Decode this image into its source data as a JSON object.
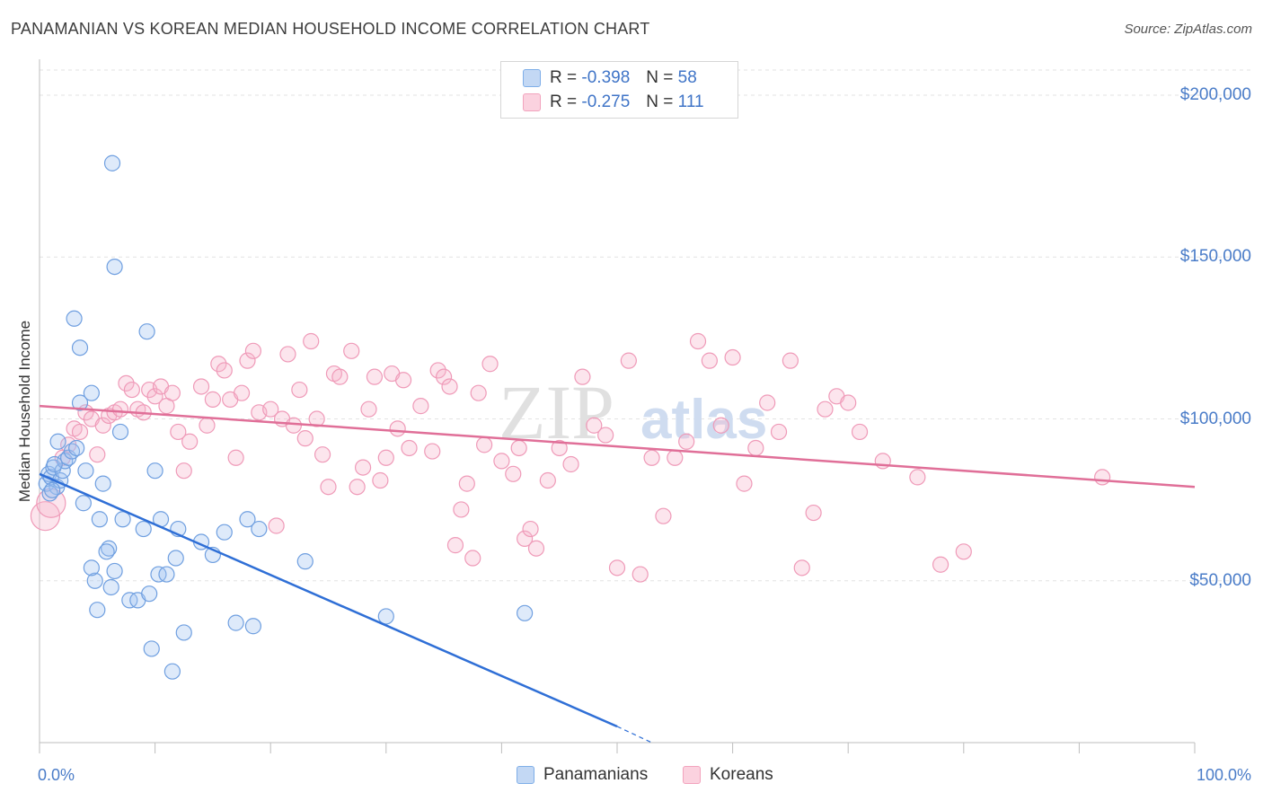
{
  "title": "PANAMANIAN VS KOREAN MEDIAN HOUSEHOLD INCOME CORRELATION CHART",
  "source": "Source: ZipAtlas.com",
  "watermark": {
    "zip": "ZIP",
    "atlas": "atlas"
  },
  "legend": {
    "r_label": "R =",
    "n_label": "N =",
    "rows": [
      {
        "name": "Panamanians",
        "r": "-0.398",
        "n": "58",
        "color": "#7eaee8"
      },
      {
        "name": "Koreans",
        "r": "-0.275",
        "n": "111",
        "color": "#f2a3bd"
      }
    ]
  },
  "chart_data": {
    "type": "scatter",
    "title": "PANAMANIAN VS KOREAN MEDIAN HOUSEHOLD INCOME CORRELATION CHART",
    "xlabel": "",
    "ylabel": "Median Household Income",
    "xlim": [
      0,
      100
    ],
    "ylim": [
      0,
      210000
    ],
    "x_tick_labels": [
      "0.0%",
      "100.0%"
    ],
    "y_ticks": [
      50000,
      100000,
      150000,
      200000
    ],
    "y_tick_labels": [
      "$50,000",
      "$100,000",
      "$150,000",
      "$200,000"
    ],
    "grid": true,
    "series": [
      {
        "name": "Panamanians",
        "color": "#5b8fdc",
        "trend": {
          "x": [
            0,
            50
          ],
          "y": [
            83000,
            5000
          ],
          "dashed_to": [
            53,
            0
          ]
        },
        "points": [
          [
            0.6,
            80000
          ],
          [
            0.8,
            83000
          ],
          [
            1.0,
            82000
          ],
          [
            1.2,
            85000
          ],
          [
            1.5,
            79000
          ],
          [
            1.8,
            81000
          ],
          [
            2.0,
            84000
          ],
          [
            2.2,
            87000
          ],
          [
            2.5,
            88000
          ],
          [
            0.9,
            77000
          ],
          [
            1.3,
            86000
          ],
          [
            1.6,
            93000
          ],
          [
            2.8,
            90000
          ],
          [
            3.2,
            91000
          ],
          [
            3.5,
            105000
          ],
          [
            3.8,
            74000
          ],
          [
            4.0,
            84000
          ],
          [
            4.5,
            108000
          ],
          [
            5.5,
            80000
          ],
          [
            6.0,
            60000
          ],
          [
            6.5,
            53000
          ],
          [
            5.8,
            59000
          ],
          [
            5.2,
            69000
          ],
          [
            6.2,
            48000
          ],
          [
            5.0,
            41000
          ],
          [
            4.8,
            50000
          ],
          [
            4.5,
            54000
          ],
          [
            7.0,
            96000
          ],
          [
            7.2,
            69000
          ],
          [
            7.8,
            44000
          ],
          [
            8.5,
            44000
          ],
          [
            9.0,
            66000
          ],
          [
            9.5,
            46000
          ],
          [
            9.7,
            29000
          ],
          [
            10.0,
            84000
          ],
          [
            10.5,
            69000
          ],
          [
            10.3,
            52000
          ],
          [
            11.0,
            52000
          ],
          [
            11.8,
            57000
          ],
          [
            12.0,
            66000
          ],
          [
            12.5,
            34000
          ],
          [
            9.3,
            127000
          ],
          [
            11.5,
            22000
          ],
          [
            14.0,
            62000
          ],
          [
            15.0,
            58000
          ],
          [
            16.0,
            65000
          ],
          [
            17.0,
            37000
          ],
          [
            18.0,
            69000
          ],
          [
            19.0,
            66000
          ],
          [
            18.5,
            36000
          ],
          [
            3.0,
            131000
          ],
          [
            3.5,
            122000
          ],
          [
            6.3,
            179000
          ],
          [
            6.5,
            147000
          ],
          [
            23.0,
            56000
          ],
          [
            30.0,
            39000
          ],
          [
            42.0,
            40000
          ],
          [
            1.1,
            78000
          ]
        ]
      },
      {
        "name": "Koreans",
        "color": "#ee8fae",
        "trend": {
          "x": [
            0,
            100
          ],
          "y": [
            104000,
            79000
          ]
        },
        "points": [
          [
            0.5,
            70000
          ],
          [
            2.0,
            88000
          ],
          [
            2.5,
            92000
          ],
          [
            3.0,
            97000
          ],
          [
            3.5,
            96000
          ],
          [
            4.0,
            102000
          ],
          [
            4.5,
            100000
          ],
          [
            5.0,
            89000
          ],
          [
            5.5,
            98000
          ],
          [
            6.0,
            101000
          ],
          [
            6.5,
            102000
          ],
          [
            7.0,
            103000
          ],
          [
            7.5,
            111000
          ],
          [
            8.0,
            109000
          ],
          [
            8.5,
            103000
          ],
          [
            9.0,
            102000
          ],
          [
            9.5,
            109000
          ],
          [
            10.0,
            107000
          ],
          [
            10.5,
            110000
          ],
          [
            11.0,
            104000
          ],
          [
            11.5,
            108000
          ],
          [
            12.0,
            96000
          ],
          [
            12.5,
            84000
          ],
          [
            13.0,
            93000
          ],
          [
            14.0,
            110000
          ],
          [
            14.5,
            98000
          ],
          [
            15.0,
            106000
          ],
          [
            15.5,
            117000
          ],
          [
            16.0,
            115000
          ],
          [
            16.5,
            106000
          ],
          [
            17.0,
            88000
          ],
          [
            17.5,
            108000
          ],
          [
            18.0,
            118000
          ],
          [
            18.5,
            121000
          ],
          [
            19.0,
            102000
          ],
          [
            20.0,
            103000
          ],
          [
            20.5,
            67000
          ],
          [
            21.0,
            100000
          ],
          [
            21.5,
            120000
          ],
          [
            22.0,
            98000
          ],
          [
            22.5,
            109000
          ],
          [
            23.0,
            94000
          ],
          [
            23.5,
            124000
          ],
          [
            24.0,
            100000
          ],
          [
            24.5,
            89000
          ],
          [
            25.0,
            79000
          ],
          [
            25.5,
            114000
          ],
          [
            26.0,
            113000
          ],
          [
            27.0,
            121000
          ],
          [
            27.5,
            79000
          ],
          [
            28.0,
            85000
          ],
          [
            28.5,
            103000
          ],
          [
            29.0,
            113000
          ],
          [
            29.5,
            81000
          ],
          [
            30.0,
            88000
          ],
          [
            30.5,
            114000
          ],
          [
            31.0,
            97000
          ],
          [
            31.5,
            112000
          ],
          [
            32.0,
            91000
          ],
          [
            33.0,
            104000
          ],
          [
            34.0,
            90000
          ],
          [
            34.5,
            115000
          ],
          [
            35.0,
            113000
          ],
          [
            35.5,
            110000
          ],
          [
            36.0,
            61000
          ],
          [
            36.5,
            72000
          ],
          [
            37.0,
            80000
          ],
          [
            37.5,
            57000
          ],
          [
            38.0,
            108000
          ],
          [
            38.5,
            92000
          ],
          [
            39.0,
            117000
          ],
          [
            40.0,
            87000
          ],
          [
            41.0,
            83000
          ],
          [
            41.5,
            91000
          ],
          [
            42.0,
            63000
          ],
          [
            42.5,
            66000
          ],
          [
            43.0,
            60000
          ],
          [
            44.0,
            81000
          ],
          [
            45.0,
            91000
          ],
          [
            46.0,
            86000
          ],
          [
            47.0,
            113000
          ],
          [
            48.0,
            98000
          ],
          [
            49.0,
            95000
          ],
          [
            50.0,
            54000
          ],
          [
            51.0,
            118000
          ],
          [
            52.0,
            52000
          ],
          [
            53.0,
            88000
          ],
          [
            54.0,
            70000
          ],
          [
            55.0,
            88000
          ],
          [
            56.0,
            93000
          ],
          [
            57.0,
            124000
          ],
          [
            58.0,
            118000
          ],
          [
            59.0,
            98000
          ],
          [
            60.0,
            119000
          ],
          [
            61.0,
            80000
          ],
          [
            62.0,
            91000
          ],
          [
            63.0,
            105000
          ],
          [
            64.0,
            96000
          ],
          [
            65.0,
            118000
          ],
          [
            66.0,
            54000
          ],
          [
            67.0,
            71000
          ],
          [
            68.0,
            103000
          ],
          [
            69.0,
            107000
          ],
          [
            70.0,
            105000
          ],
          [
            71.0,
            96000
          ],
          [
            73.0,
            87000
          ],
          [
            76.0,
            82000
          ],
          [
            78.0,
            55000
          ],
          [
            80.0,
            59000
          ],
          [
            92.0,
            82000
          ],
          [
            1.0,
            74000
          ]
        ]
      }
    ]
  }
}
